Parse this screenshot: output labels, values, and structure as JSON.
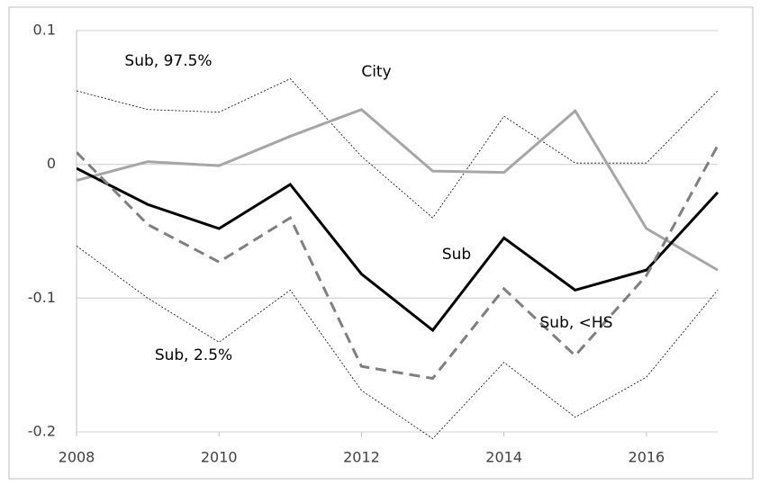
{
  "chart_data": {
    "type": "line",
    "x": [
      2008,
      2009,
      2010,
      2011,
      2012,
      2013,
      2014,
      2015,
      2016,
      2017
    ],
    "xlim": [
      2008,
      2017
    ],
    "xticks": [
      2008,
      2010,
      2012,
      2014,
      2016
    ],
    "ylim": [
      -0.2,
      0.1
    ],
    "yticks": [
      -0.2,
      -0.1,
      0,
      0.1
    ],
    "grid": true,
    "series": [
      {
        "name": "Sub, 97.5%",
        "color": "#000000",
        "style": "dotted",
        "values": [
          0.055,
          0.041,
          0.039,
          0.064,
          0.006,
          -0.04,
          0.036,
          0.001,
          0.001,
          0.055
        ]
      },
      {
        "name": "City",
        "color": "#a6a6a6",
        "style": "solid",
        "values": [
          -0.012,
          0.002,
          -0.001,
          0.021,
          0.041,
          -0.005,
          -0.006,
          0.04,
          -0.048,
          -0.079
        ]
      },
      {
        "name": "Sub",
        "color": "#000000",
        "style": "solid",
        "values": [
          -0.003,
          -0.03,
          -0.048,
          -0.015,
          -0.082,
          -0.124,
          -0.055,
          -0.094,
          -0.079,
          -0.021
        ]
      },
      {
        "name": "Sub, <HS",
        "color": "#7f7f7f",
        "style": "dashed",
        "values": [
          0.009,
          -0.045,
          -0.073,
          -0.04,
          -0.151,
          -0.16,
          -0.093,
          -0.143,
          -0.083,
          0.014
        ]
      },
      {
        "name": "Sub, 2.5%",
        "color": "#000000",
        "style": "dotted",
        "values": [
          -0.061,
          -0.1,
          -0.133,
          -0.094,
          -0.169,
          -0.205,
          -0.148,
          -0.189,
          -0.159,
          -0.094
        ]
      }
    ]
  }
}
